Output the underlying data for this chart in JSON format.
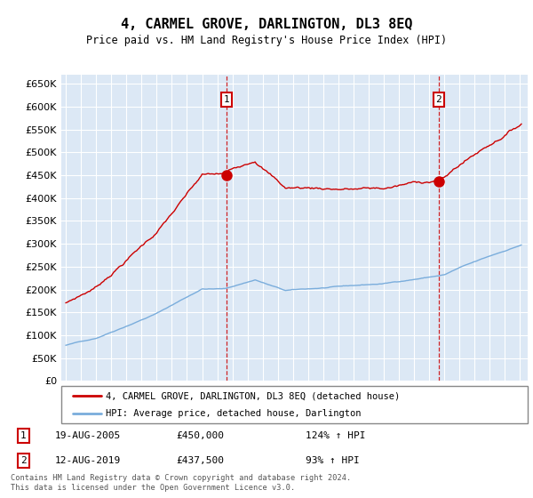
{
  "title": "4, CARMEL GROVE, DARLINGTON, DL3 8EQ",
  "subtitle": "Price paid vs. HM Land Registry's House Price Index (HPI)",
  "legend_line1": "4, CARMEL GROVE, DARLINGTON, DL3 8EQ (detached house)",
  "legend_line2": "HPI: Average price, detached house, Darlington",
  "annotation1_date": "19-AUG-2005",
  "annotation1_price": "£450,000",
  "annotation1_hpi": "124% ↑ HPI",
  "annotation2_date": "12-AUG-2019",
  "annotation2_price": "£437,500",
  "annotation2_hpi": "93% ↑ HPI",
  "footer": "Contains HM Land Registry data © Crown copyright and database right 2024.\nThis data is licensed under the Open Government Licence v3.0.",
  "sale1_year": 2005.63,
  "sale1_price": 450000,
  "sale2_year": 2019.62,
  "sale2_price": 437500,
  "red_color": "#cc0000",
  "blue_color": "#7aaddc",
  "background_color": "#dce8f5",
  "ylim_min": 0,
  "ylim_max": 670000,
  "ytick_max": 650000,
  "ytick_step": 50000,
  "xmin": 1994.7,
  "xmax": 2025.5
}
